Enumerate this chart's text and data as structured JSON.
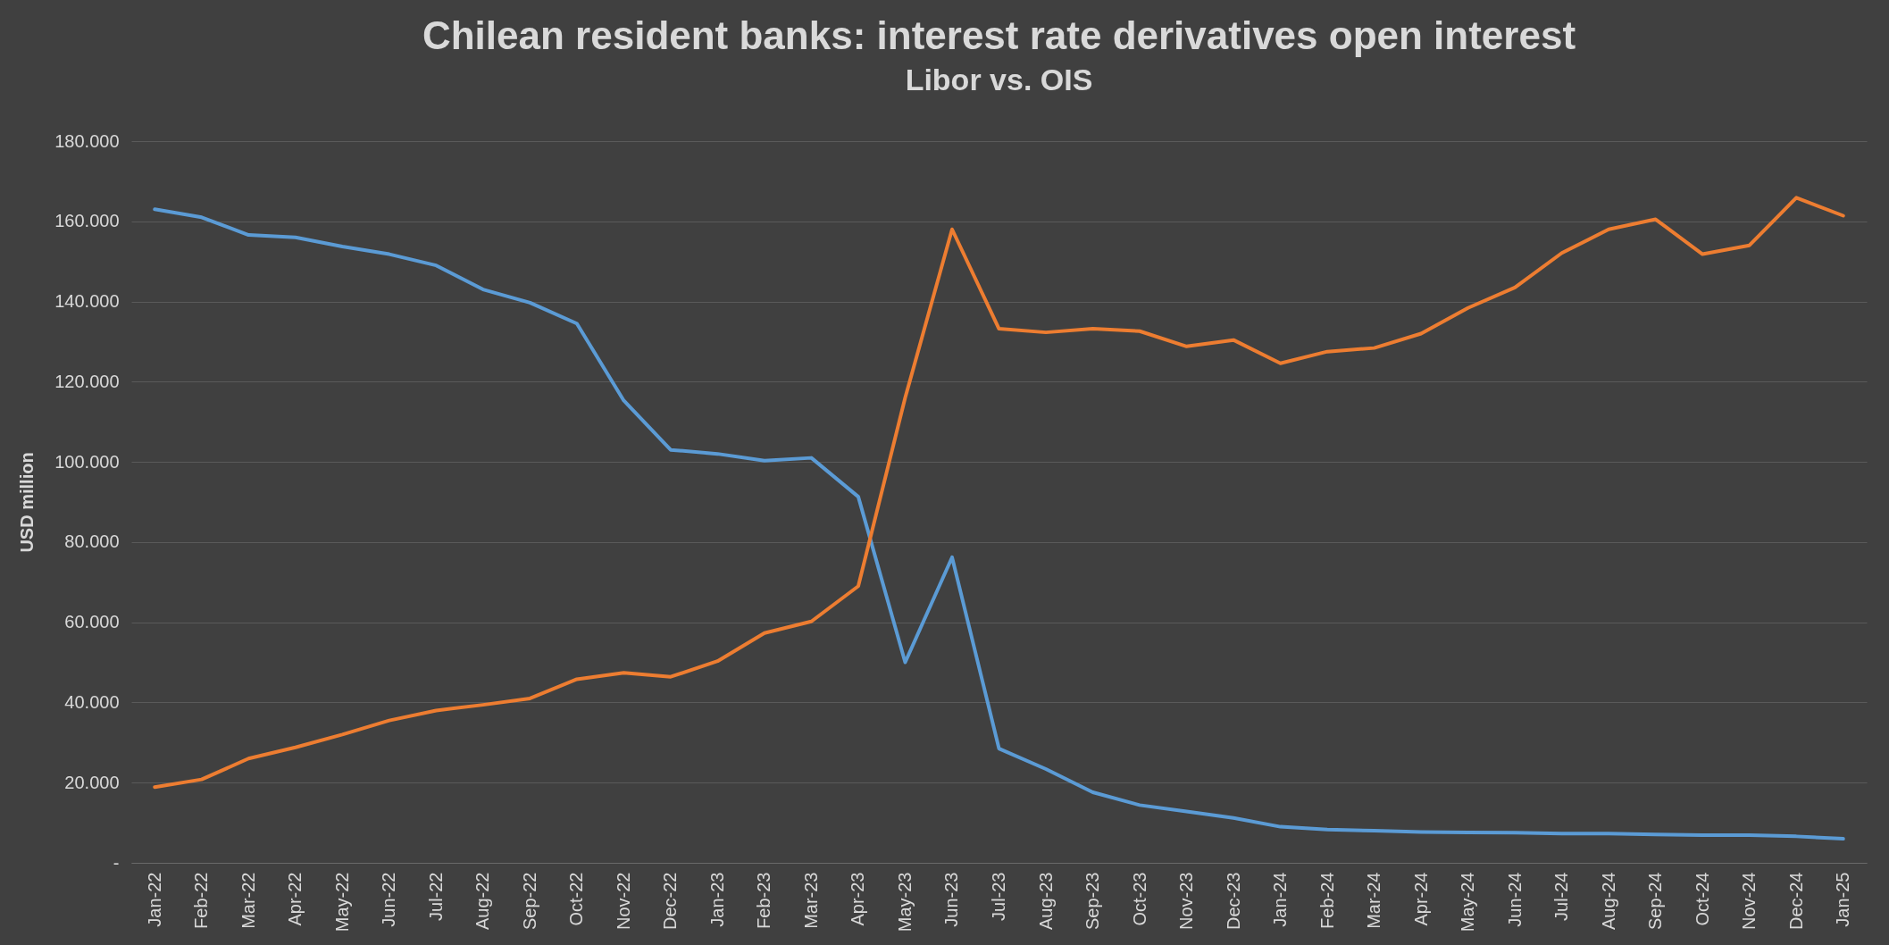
{
  "chart_data": {
    "type": "line",
    "title": "Chilean resident banks: interest rate derivatives open interest",
    "subtitle": "Libor vs. OIS",
    "ylabel": "USD million",
    "categories": [
      "Jan-22",
      "Feb-22",
      "Mar-22",
      "Apr-22",
      "May-22",
      "Jun-22",
      "Jul-22",
      "Aug-22",
      "Sep-22",
      "Oct-22",
      "Nov-22",
      "Dec-22",
      "Jan-23",
      "Feb-23",
      "Mar-23",
      "Apr-23",
      "May-23",
      "Jun-23",
      "Jul-23",
      "Aug-23",
      "Sep-23",
      "Oct-23",
      "Nov-23",
      "Dec-23",
      "Jan-24",
      "Feb-24",
      "Mar-24",
      "Apr-24",
      "May-24",
      "Jun-24",
      "Jul-24",
      "Aug-24",
      "Sep-24",
      "Oct-24",
      "Nov-24",
      "Dec-24",
      "Jan-25"
    ],
    "series": [
      {
        "color": "#5b9bd5",
        "values": [
          163000,
          161000,
          156600,
          156000,
          153700,
          151800,
          149000,
          143000,
          139700,
          134500,
          115300,
          103000,
          102000,
          100300,
          101000,
          91300,
          50000,
          76200,
          28500,
          23400,
          17600,
          14400,
          12800,
          11200,
          9000,
          8300,
          8000,
          7700,
          7600,
          7500,
          7300,
          7300,
          7100,
          6900,
          6900,
          6600,
          6000
        ]
      },
      {
        "color": "#ed7d31",
        "values": [
          18900,
          20800,
          26000,
          28800,
          32000,
          35500,
          38000,
          39400,
          41000,
          45800,
          47400,
          46400,
          50300,
          57300,
          60200,
          69000,
          116000,
          158000,
          133200,
          132300,
          133200,
          132600,
          128800,
          130400,
          124600,
          127500,
          128400,
          132000,
          138400,
          143500,
          152100,
          158000,
          160500,
          151800,
          154000,
          165900,
          161400
        ]
      }
    ],
    "ylim": [
      0,
      180000
    ],
    "yticks": [
      {
        "value": 0,
        "label": "-"
      },
      {
        "value": 20000,
        "label": "20.000"
      },
      {
        "value": 40000,
        "label": "40.000"
      },
      {
        "value": 60000,
        "label": "60.000"
      },
      {
        "value": 80000,
        "label": "80.000"
      },
      {
        "value": 100000,
        "label": "100.000"
      },
      {
        "value": 120000,
        "label": "120.000"
      },
      {
        "value": 140000,
        "label": "140.000"
      },
      {
        "value": 160000,
        "label": "160.000"
      },
      {
        "value": 180000,
        "label": "180.000"
      }
    ],
    "grid": "y"
  }
}
